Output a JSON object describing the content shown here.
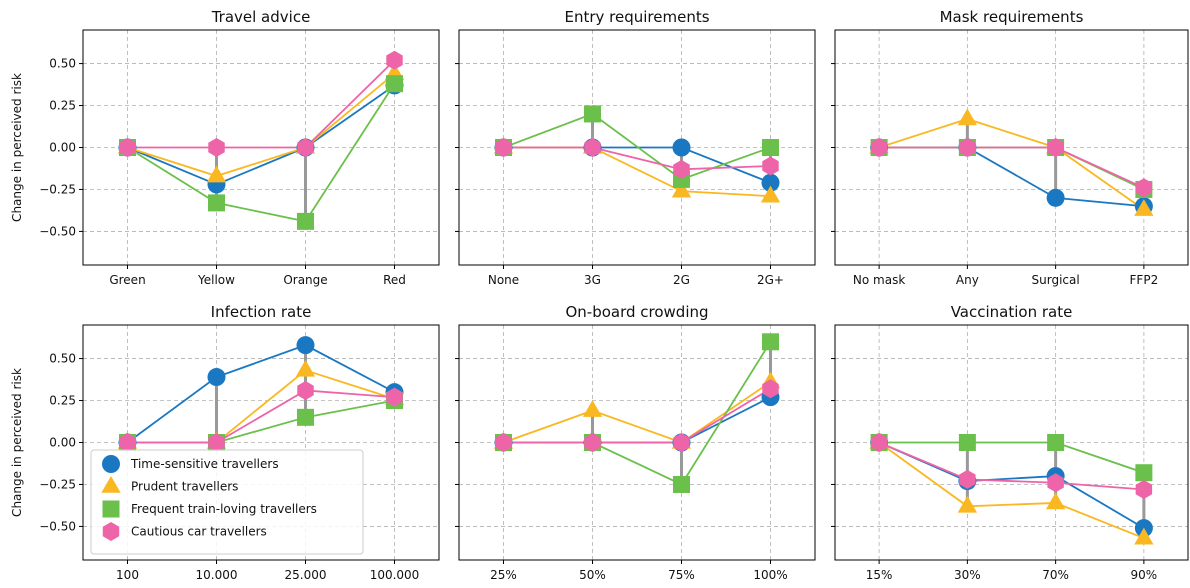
{
  "ylabel": "Change in perceived risk",
  "ylim": [
    -0.7,
    0.7
  ],
  "yticks": [
    -0.5,
    -0.25,
    0,
    0.25,
    0.5
  ],
  "ytick_labels": [
    "−0.50",
    "−0.25",
    "0.00",
    "0.25",
    "0.50"
  ],
  "grid": true,
  "legend": {
    "position": "lower-left",
    "panel": 3,
    "entries": [
      "Time-sensitive travellers",
      "Prudent travellers",
      "Frequent train-loving travellers",
      "Cautious car travellers"
    ]
  },
  "series_styles": [
    {
      "color": "#1a78c2",
      "marker": "circle"
    },
    {
      "color": "#f9b821",
      "marker": "triangle"
    },
    {
      "color": "#6ac04a",
      "marker": "square"
    },
    {
      "color": "#ee64a8",
      "marker": "hexagon"
    }
  ],
  "chart_data": [
    {
      "type": "line",
      "title": "Travel advice",
      "categories": [
        "Green",
        "Yellow",
        "Orange",
        "Red"
      ],
      "series": [
        {
          "name": "Time-sensitive travellers",
          "values": [
            0,
            -0.22,
            0,
            0.37
          ]
        },
        {
          "name": "Prudent travellers",
          "values": [
            0,
            -0.17,
            0,
            0.44
          ]
        },
        {
          "name": "Frequent train-loving travellers",
          "values": [
            0,
            -0.33,
            -0.44,
            0.38
          ]
        },
        {
          "name": "Cautious car travellers",
          "values": [
            0,
            0,
            0,
            0.52
          ]
        }
      ]
    },
    {
      "type": "line",
      "title": "Entry requirements",
      "categories": [
        "None",
        "3G",
        "2G",
        "2G+"
      ],
      "series": [
        {
          "name": "Time-sensitive travellers",
          "values": [
            0,
            0,
            0,
            -0.21
          ]
        },
        {
          "name": "Prudent travellers",
          "values": [
            0,
            0,
            -0.26,
            -0.29
          ]
        },
        {
          "name": "Frequent train-loving travellers",
          "values": [
            0,
            0.2,
            -0.19,
            0
          ]
        },
        {
          "name": "Cautious car travellers",
          "values": [
            0,
            0,
            -0.13,
            -0.11
          ]
        }
      ]
    },
    {
      "type": "line",
      "title": "Mask requirements",
      "categories": [
        "No mask",
        "Any",
        "Surgical",
        "FFP2"
      ],
      "series": [
        {
          "name": "Time-sensitive travellers",
          "values": [
            0,
            0,
            -0.3,
            -0.35
          ]
        },
        {
          "name": "Prudent travellers",
          "values": [
            0,
            0.17,
            0,
            -0.37
          ]
        },
        {
          "name": "Frequent train-loving travellers",
          "values": [
            0,
            0,
            0,
            -0.25
          ]
        },
        {
          "name": "Cautious car travellers",
          "values": [
            0,
            0,
            0,
            -0.24
          ]
        }
      ]
    },
    {
      "type": "line",
      "title": "Infection rate",
      "categories": [
        "100",
        "10.000",
        "25.000",
        "100.000"
      ],
      "series": [
        {
          "name": "Time-sensitive travellers",
          "values": [
            0,
            0.39,
            0.58,
            0.3
          ]
        },
        {
          "name": "Prudent travellers",
          "values": [
            0,
            0,
            0.43,
            0.26
          ]
        },
        {
          "name": "Frequent train-loving travellers",
          "values": [
            0,
            0,
            0.15,
            0.25
          ]
        },
        {
          "name": "Cautious car travellers",
          "values": [
            0,
            0,
            0.31,
            0.27
          ]
        }
      ]
    },
    {
      "type": "line",
      "title": "On-board crowding",
      "categories": [
        "25%",
        "50%",
        "75%",
        "100%"
      ],
      "series": [
        {
          "name": "Time-sensitive travellers",
          "values": [
            0,
            0,
            0,
            0.27
          ]
        },
        {
          "name": "Prudent travellers",
          "values": [
            0,
            0.19,
            0,
            0.36
          ]
        },
        {
          "name": "Frequent train-loving travellers",
          "values": [
            0,
            0,
            -0.25,
            0.6
          ]
        },
        {
          "name": "Cautious car travellers",
          "values": [
            0,
            0,
            0,
            0.32
          ]
        }
      ]
    },
    {
      "type": "line",
      "title": "Vaccination rate",
      "categories": [
        "15%",
        "30%",
        "70%",
        "90%"
      ],
      "series": [
        {
          "name": "Time-sensitive travellers",
          "values": [
            0,
            -0.23,
            -0.2,
            -0.51
          ]
        },
        {
          "name": "Prudent travellers",
          "values": [
            0,
            -0.38,
            -0.36,
            -0.57
          ]
        },
        {
          "name": "Frequent train-loving travellers",
          "values": [
            0,
            0,
            0,
            -0.18
          ]
        },
        {
          "name": "Cautious car travellers",
          "values": [
            0,
            -0.22,
            -0.24,
            -0.28
          ]
        }
      ]
    }
  ]
}
